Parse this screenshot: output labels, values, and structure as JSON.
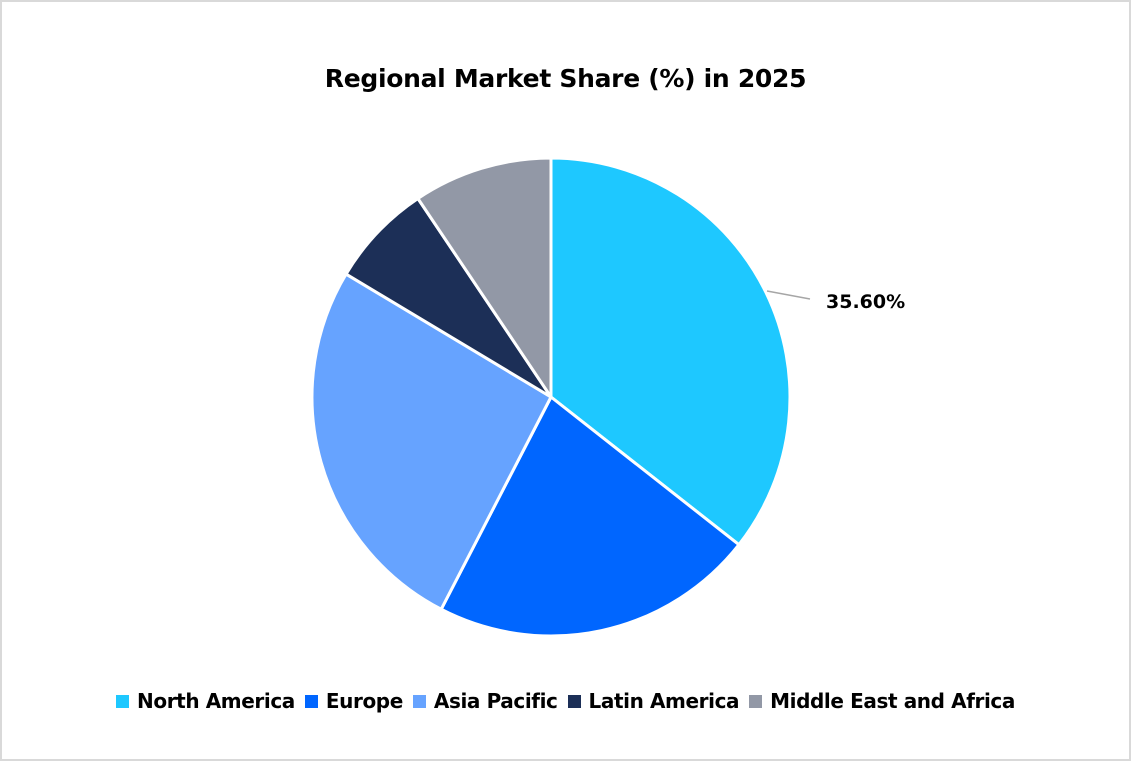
{
  "chart_data": {
    "type": "pie",
    "title": "Regional Market Share (%) in 2025",
    "categories": [
      "North America",
      "Europe",
      "Asia Pacific",
      "Latin America",
      "Middle East and Africa"
    ],
    "values": [
      35.6,
      22.0,
      26.0,
      7.0,
      9.4
    ],
    "unit": "%",
    "colors": [
      "#1ec8ff",
      "#0066ff",
      "#66a3ff",
      "#1c2f57",
      "#9298a6"
    ],
    "data_labels": [
      {
        "category": "North America",
        "text": "35.60%"
      }
    ],
    "start_angle_deg": 0,
    "direction": "clockwise",
    "legend_position": "bottom",
    "slice_border_color": "#ffffff"
  },
  "chart": {
    "title": "Regional Market Share (%) in 2025",
    "label_na": "35.60%"
  },
  "legend": {
    "items": [
      {
        "label": "North America",
        "color": "#1ec8ff"
      },
      {
        "label": "Europe",
        "color": "#0066ff"
      },
      {
        "label": "Asia Pacific",
        "color": "#66a3ff"
      },
      {
        "label": "Latin America",
        "color": "#1c2f57"
      },
      {
        "label": "Middle East and Africa",
        "color": "#9298a6"
      }
    ]
  }
}
